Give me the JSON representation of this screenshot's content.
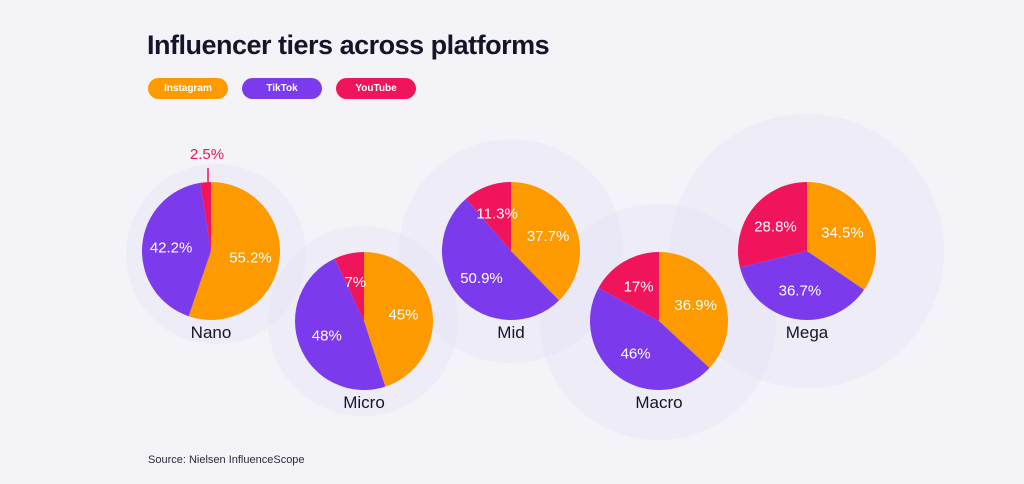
{
  "title": "Influencer tiers across platforms",
  "source": "Source: Nielsen InfluenceScope",
  "colors": {
    "instagram": "#fc9a00",
    "tiktok": "#7c3aed",
    "youtube": "#f0145a",
    "halo": "#e8e6f5",
    "label_dark": "#14142b"
  },
  "legend": [
    {
      "label": "Instagram",
      "color": "#fc9a00"
    },
    {
      "label": "TikTok",
      "color": "#7c3aed"
    },
    {
      "label": "YouTube",
      "color": "#f0145a"
    }
  ],
  "chart_data": {
    "type": "pie",
    "title": "Influencer tiers across platforms",
    "series_names": [
      "Instagram",
      "TikTok",
      "YouTube"
    ],
    "pies": [
      {
        "name": "Nano",
        "values": [
          55.2,
          42.2,
          2.5
        ],
        "labels": [
          "55.2%",
          "42.2%",
          "2.5%"
        ]
      },
      {
        "name": "Micro",
        "values": [
          45,
          48,
          7
        ],
        "labels": [
          "45%",
          "48%",
          "7%"
        ]
      },
      {
        "name": "Mid",
        "values": [
          37.7,
          50.9,
          11.3
        ],
        "labels": [
          "37.7%",
          "50.9%",
          "11.3%"
        ]
      },
      {
        "name": "Macro",
        "values": [
          36.9,
          46,
          17
        ],
        "labels": [
          "36.9%",
          "46%",
          "17%"
        ]
      },
      {
        "name": "Mega",
        "values": [
          34.5,
          36.7,
          28.8
        ],
        "labels": [
          "34.5%",
          "36.7%",
          "28.8%"
        ]
      }
    ]
  }
}
